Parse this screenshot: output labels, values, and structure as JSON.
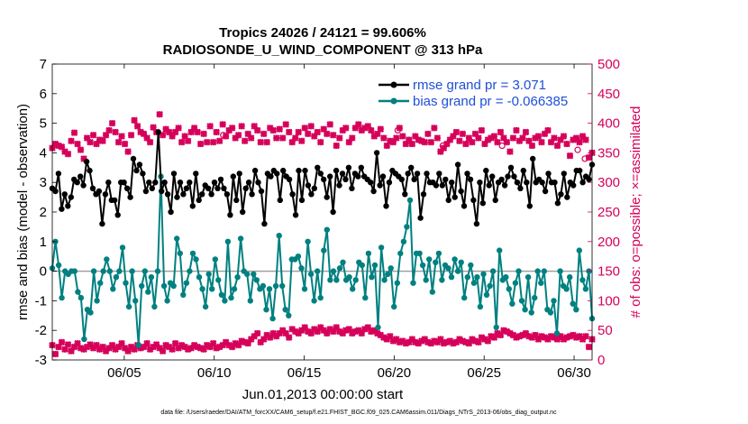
{
  "chart_data": {
    "type": "line",
    "title_line1": "Tropics 24026 / 24121 = 99.606%",
    "title_line2": "RADIOSONDE_U_WIND_COMPONENT @ 313 hPa",
    "xlabel": "Jun.01,2013 00:00:00 start",
    "ylabel_left": "rmse and bias (model - observation)",
    "ylabel_right": "# of obs: o=possible; ×=assimilated",
    "xlim": [
      1,
      31
    ],
    "ylim_left": [
      -3,
      7
    ],
    "ylim_right": [
      0,
      500
    ],
    "x_ticks": [
      5,
      10,
      15,
      20,
      25,
      30
    ],
    "x_tick_labels": [
      "06/05",
      "06/10",
      "06/15",
      "06/20",
      "06/25",
      "06/30"
    ],
    "y_left_ticks": [
      "-3",
      "-2",
      "-1",
      "0",
      "1",
      "2",
      "3",
      "4",
      "5",
      "6",
      "7"
    ],
    "y_right_ticks": [
      "0",
      "50",
      "100",
      "150",
      "200",
      "250",
      "300",
      "350",
      "400",
      "450",
      "500"
    ],
    "legend": [
      {
        "name": "rmse grand pr = 3.071",
        "color": "#000000"
      },
      {
        "name": "bias grand pr = -0.066385",
        "color": "#008080"
      }
    ],
    "colors": {
      "rmse": "#000000",
      "bias": "#008080",
      "obs": "#d6005a",
      "zero_line": "#a0a0a0",
      "legend_text": "#1f4fd6"
    },
    "rmse_values": [
      2.8,
      2.7,
      3.3,
      2.1,
      2.6,
      2.2,
      2.5,
      3.1,
      3.0,
      3.2,
      2.9,
      3.7,
      3.4,
      2.8,
      2.6,
      2.7,
      1.6,
      2.6,
      3.0,
      2.4,
      2.4,
      1.9,
      3.0,
      3.0,
      2.8,
      2.5,
      3.8,
      3.4,
      3.6,
      3.3,
      2.7,
      3.0,
      2.8,
      3.0,
      4.7,
      2.7,
      3.0,
      2.6,
      2.0,
      3.3,
      2.5,
      3.0,
      2.6,
      2.8,
      3.0,
      2.2,
      3.3,
      2.4,
      2.6,
      2.9,
      2.8,
      2.6,
      3.0,
      2.8,
      3.1,
      2.8,
      2.6,
      1.9,
      3.2,
      2.4,
      3.3,
      2.0,
      2.8,
      3.0,
      2.6,
      3.4,
      3.0,
      2.7,
      1.6,
      3.3,
      3.2,
      3.4,
      3.3,
      2.4,
      3.4,
      3.2,
      3.1,
      2.6,
      1.9,
      3.4,
      2.4,
      3.4,
      2.9,
      2.6,
      2.8,
      3.5,
      3.3,
      3.1,
      2.5,
      3.2,
      2.0,
      3.4,
      2.9,
      3.3,
      3.1,
      3.5,
      2.8,
      3.3,
      3.2,
      3.5,
      3.2,
      3.1,
      3.0,
      2.7,
      4.0,
      2.9,
      3.2,
      2.2,
      3.0,
      3.4,
      3.3,
      3.2,
      3.1,
      2.6,
      3.3,
      3.5,
      3.1,
      3.3,
      1.8,
      2.6,
      3.3,
      3.0,
      3.0,
      2.9,
      3.3,
      2.9,
      3.1,
      2.4,
      3.0,
      2.5,
      3.6,
      2.7,
      2.2,
      3.3,
      3.1,
      2.4,
      1.6,
      3.0,
      2.3,
      3.4,
      2.9,
      3.2,
      2.4,
      3.0,
      3.1,
      2.9,
      3.2,
      3.5,
      3.2,
      3.0,
      2.8,
      3.4,
      3.0,
      2.2,
      3.8,
      3.0,
      3.1,
      3.0,
      2.7,
      3.3,
      3.0,
      3.0,
      2.3,
      2.6,
      3.3,
      2.5,
      3.0,
      2.9,
      3.4,
      3.4,
      3.0,
      3.2,
      3.1,
      3.6
    ],
    "bias_values": [
      0.1,
      1.0,
      0.2,
      -0.9,
      0.0,
      -0.1,
      0.0,
      0.0,
      -0.7,
      -0.9,
      -2.3,
      -1.3,
      -1.4,
      0.0,
      -1.0,
      -0.4,
      0.0,
      0.4,
      0.0,
      -0.6,
      -0.2,
      0.0,
      0.8,
      -0.4,
      -1.2,
      0.0,
      -1.0,
      -2.5,
      -0.5,
      0.0,
      -0.7,
      -0.2,
      -1.2,
      0.0,
      3.2,
      -0.5,
      -1.0,
      -0.4,
      -0.5,
      1.1,
      0.6,
      -0.8,
      -0.4,
      0.0,
      0.6,
      0.4,
      -0.2,
      -0.6,
      -1.2,
      -0.1,
      -0.6,
      0.4,
      -0.3,
      -0.8,
      -1.0,
      1.0,
      -0.9,
      -0.6,
      -0.2,
      1.1,
      0.0,
      -0.1,
      -1.0,
      -0.1,
      -0.3,
      -0.6,
      -0.5,
      -1.3,
      -0.6,
      -1.6,
      -0.5,
      1.2,
      -0.5,
      -1.3,
      -1.5,
      0.4,
      0.4,
      0.5,
      0.1,
      -0.6,
      1.0,
      -0.1,
      -1.0,
      0.0,
      -0.9,
      0.7,
      1.4,
      -0.3,
      0.0,
      -0.3,
      0.1,
      0.3,
      -0.3,
      -0.2,
      -0.6,
      -0.3,
      0.3,
      0.2,
      -0.9,
      0.6,
      -0.2,
      0.2,
      -1.9,
      0.8,
      -0.3,
      -0.1,
      0.1,
      -1.2,
      -0.4,
      0.6,
      1.0,
      1.5,
      2.4,
      -0.4,
      0.6,
      0.6,
      0.2,
      -0.3,
      0.4,
      -0.7,
      0.3,
      0.6,
      -0.3,
      0.2,
      0.1,
      -0.2,
      0.4,
      0.0,
      0.3,
      -0.9,
      -0.2,
      0.2,
      -0.4,
      -0.2,
      -1.2,
      -0.1,
      -0.8,
      -0.5,
      0.0,
      -1.9,
      0.7,
      -0.3,
      -0.2,
      -0.6,
      -1.1,
      -0.4,
      0.0,
      -1.0,
      -1.3,
      -0.2,
      -1.4,
      -0.9,
      0.0,
      -0.4,
      0.0,
      -1.3,
      -1.4,
      -1.0,
      -2.1,
      0.0,
      -0.5,
      -0.6,
      -0.2,
      -1.1,
      -1.3,
      0.7,
      -0.3,
      -0.6,
      0.0,
      -1.6
    ],
    "obs_top_values": [
      358,
      365,
      362,
      360,
      352,
      348,
      370,
      384,
      365,
      355,
      340,
      375,
      368,
      380,
      365,
      372,
      370,
      380,
      388,
      400,
      385,
      368,
      378,
      365,
      352,
      380,
      405,
      395,
      385,
      382,
      375,
      368,
      393,
      385,
      415,
      380,
      390,
      385,
      378,
      385,
      392,
      368,
      378,
      370,
      385,
      392,
      385,
      365,
      382,
      368,
      395,
      368,
      385,
      370,
      398,
      378,
      388,
      392,
      375,
      380,
      395,
      370,
      382,
      375,
      395,
      388,
      368,
      382,
      368,
      392,
      388,
      375,
      390,
      375,
      398,
      385,
      368,
      375,
      385,
      370,
      392,
      382,
      395,
      378,
      385,
      368,
      390,
      382,
      398,
      380,
      362,
      375,
      388,
      392,
      368,
      375,
      392,
      398,
      388,
      392,
      395,
      388,
      378,
      382,
      390,
      375,
      362,
      370,
      368,
      375,
      392,
      378,
      365,
      372,
      365,
      378,
      372,
      370,
      368,
      382,
      368,
      392,
      375,
      352,
      358,
      365,
      372,
      378,
      385,
      370,
      382,
      365,
      375,
      368,
      382,
      375,
      388,
      365,
      372,
      375,
      378,
      368,
      385,
      375,
      368,
      352,
      375,
      388,
      370,
      375,
      385,
      370,
      362,
      375,
      378,
      368,
      382,
      388,
      368,
      375,
      362,
      372,
      378,
      365,
      345,
      372,
      375,
      368,
      378,
      372,
      342,
      350
    ],
    "obs_bottom_values": [
      25,
      10,
      22,
      30,
      18,
      26,
      15,
      22,
      28,
      20,
      18,
      22,
      26,
      20,
      25,
      18,
      22,
      15,
      20,
      25,
      18,
      22,
      28,
      20,
      15,
      22,
      18,
      25,
      20,
      22,
      28,
      18,
      22,
      26,
      20,
      15,
      25,
      22,
      18,
      28,
      20,
      25,
      22,
      18,
      20,
      25,
      22,
      20,
      18,
      25,
      22,
      28,
      20,
      22,
      25,
      30,
      25,
      22,
      28,
      25,
      32,
      30,
      28,
      35,
      40,
      45,
      30,
      35,
      42,
      38,
      45,
      40,
      45,
      50,
      45,
      38,
      52,
      48,
      45,
      50,
      55,
      48,
      45,
      52,
      48,
      55,
      50,
      45,
      52,
      48,
      55,
      48,
      45,
      50,
      52,
      45,
      48,
      50,
      45,
      52,
      55,
      48,
      50,
      45,
      42,
      38,
      35,
      40,
      32,
      35,
      30,
      32,
      28,
      30,
      35,
      30,
      28,
      32,
      35,
      30,
      28,
      32,
      30,
      35,
      28,
      30,
      32,
      28,
      30,
      35,
      32,
      30,
      28,
      35,
      32,
      30,
      38,
      35,
      32,
      40,
      38,
      45,
      42,
      50,
      48,
      45,
      42,
      38,
      40,
      42,
      45,
      40,
      38,
      42,
      35,
      40,
      38,
      35,
      40,
      38,
      35,
      40,
      35,
      38,
      40,
      42,
      38,
      40,
      35,
      40,
      22,
      35
    ],
    "possible_circle_values": [
      380,
      388,
      362,
      362,
      355,
      340
    ],
    "possible_circle_days": [
      10.5,
      20.2,
      22.7,
      26.0,
      30.2,
      30.6
    ],
    "footer": "data file: /Users/raeder/DAI/ATM_forcXX/CAM6_setup/f.e21.FHIST_BGC.f09_025.CAM6assim.011/Diags_NTrS_2013-06/obs_diag_output.nc"
  }
}
